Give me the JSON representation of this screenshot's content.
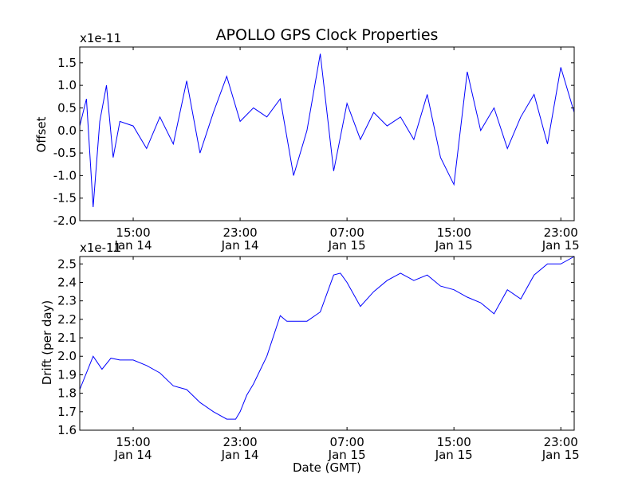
{
  "title": "APOLLO GPS Clock Properties",
  "chart_data": [
    {
      "type": "line",
      "ylabel": "Offset",
      "exponent_label": "x1e-11",
      "ylim": [
        -2.0,
        1.85
      ],
      "yticks": [
        -2.0,
        -1.5,
        -1.0,
        -0.5,
        0.0,
        0.5,
        1.0,
        1.5
      ],
      "ytick_labels": [
        "-2.0",
        "-1.5",
        "-1.0",
        "-0.5",
        "0.0",
        "0.5",
        "1.0",
        "1.5"
      ],
      "xlim": [
        "2014-01-14 11:00",
        "2014-01-16 00:00"
      ],
      "xticks": [
        "2014-01-14 15:00",
        "2014-01-14 23:00",
        "2014-01-15 07:00",
        "2014-01-15 15:00",
        "2014-01-15 23:00"
      ],
      "xtick_time": [
        "15:00",
        "23:00",
        "07:00",
        "15:00",
        "23:00"
      ],
      "xtick_date": [
        "Jan 14",
        "Jan 14",
        "Jan 15",
        "Jan 15",
        "Jan 15"
      ],
      "color": "#0000ff",
      "grid": false,
      "series": [
        {
          "x": [
            "2014-01-14 11:00",
            "2014-01-14 11:30",
            "2014-01-14 12:00",
            "2014-01-14 12:30",
            "2014-01-14 13:00",
            "2014-01-14 13:30",
            "2014-01-14 14:00",
            "2014-01-14 15:00",
            "2014-01-14 16:00",
            "2014-01-14 17:00",
            "2014-01-14 18:00",
            "2014-01-14 19:00",
            "2014-01-14 20:00",
            "2014-01-14 21:00",
            "2014-01-14 22:00",
            "2014-01-14 23:00",
            "2014-01-15 00:00",
            "2014-01-15 01:00",
            "2014-01-15 02:00",
            "2014-01-15 03:00",
            "2014-01-15 04:00",
            "2014-01-15 05:00",
            "2014-01-15 06:00",
            "2014-01-15 07:00",
            "2014-01-15 08:00",
            "2014-01-15 09:00",
            "2014-01-15 10:00",
            "2014-01-15 11:00",
            "2014-01-15 12:00",
            "2014-01-15 13:00",
            "2014-01-15 14:00",
            "2014-01-15 15:00",
            "2014-01-15 16:00",
            "2014-01-15 17:00",
            "2014-01-15 18:00",
            "2014-01-15 19:00",
            "2014-01-15 20:00",
            "2014-01-15 21:00",
            "2014-01-15 22:00",
            "2014-01-15 23:00",
            "2014-01-16 00:00"
          ],
          "y": [
            0.1,
            0.7,
            -1.7,
            0.2,
            1.0,
            -0.6,
            0.2,
            0.1,
            -0.4,
            0.3,
            -0.3,
            1.1,
            -0.5,
            0.4,
            1.2,
            0.2,
            0.5,
            0.3,
            0.7,
            -1.0,
            0.0,
            1.7,
            -0.9,
            0.6,
            -0.2,
            0.4,
            0.1,
            0.3,
            -0.2,
            0.8,
            -0.6,
            -1.2,
            1.3,
            0.0,
            0.5,
            -0.4,
            0.3,
            0.8,
            -0.3,
            1.4,
            0.4
          ]
        }
      ]
    },
    {
      "type": "line",
      "ylabel": "Drift (per day)",
      "xlabel": "Date (GMT)",
      "exponent_label": "x1e-11",
      "ylim": [
        1.6,
        2.54
      ],
      "yticks": [
        1.6,
        1.7,
        1.8,
        1.9,
        2.0,
        2.1,
        2.2,
        2.3,
        2.4,
        2.5
      ],
      "ytick_labels": [
        "1.6",
        "1.7",
        "1.8",
        "1.9",
        "2.0",
        "2.1",
        "2.2",
        "2.3",
        "2.4",
        "2.5"
      ],
      "xlim": [
        "2014-01-14 11:00",
        "2014-01-16 00:00"
      ],
      "xticks": [
        "2014-01-14 15:00",
        "2014-01-14 23:00",
        "2014-01-15 07:00",
        "2014-01-15 15:00",
        "2014-01-15 23:00"
      ],
      "xtick_time": [
        "15:00",
        "23:00",
        "07:00",
        "15:00",
        "23:00"
      ],
      "xtick_date": [
        "Jan 14",
        "Jan 14",
        "Jan 15",
        "Jan 15",
        "Jan 15"
      ],
      "color": "#0000ff",
      "grid": false,
      "series": [
        {
          "x": [
            "2014-01-14 11:00",
            "2014-01-14 12:00",
            "2014-01-14 12:40",
            "2014-01-14 13:20",
            "2014-01-14 14:00",
            "2014-01-14 15:00",
            "2014-01-14 16:00",
            "2014-01-14 17:00",
            "2014-01-14 18:00",
            "2014-01-14 19:00",
            "2014-01-14 20:00",
            "2014-01-14 21:00",
            "2014-01-14 22:00",
            "2014-01-14 22:40",
            "2014-01-14 23:00",
            "2014-01-14 23:30",
            "2014-01-15 00:00",
            "2014-01-15 01:00",
            "2014-01-15 02:00",
            "2014-01-15 02:30",
            "2014-01-15 03:00",
            "2014-01-15 04:00",
            "2014-01-15 05:00",
            "2014-01-15 06:00",
            "2014-01-15 06:30",
            "2014-01-15 07:00",
            "2014-01-15 08:00",
            "2014-01-15 09:00",
            "2014-01-15 10:00",
            "2014-01-15 11:00",
            "2014-01-15 12:00",
            "2014-01-15 13:00",
            "2014-01-15 14:00",
            "2014-01-15 15:00",
            "2014-01-15 16:00",
            "2014-01-15 17:00",
            "2014-01-15 18:00",
            "2014-01-15 19:00",
            "2014-01-15 20:00",
            "2014-01-15 21:00",
            "2014-01-15 22:00",
            "2014-01-15 23:00",
            "2014-01-16 00:00"
          ],
          "y": [
            1.82,
            2.0,
            1.93,
            1.99,
            1.98,
            1.98,
            1.95,
            1.91,
            1.84,
            1.82,
            1.75,
            1.7,
            1.66,
            1.66,
            1.7,
            1.79,
            1.85,
            2.0,
            2.22,
            2.19,
            2.19,
            2.19,
            2.24,
            2.44,
            2.45,
            2.4,
            2.27,
            2.35,
            2.41,
            2.45,
            2.41,
            2.44,
            2.38,
            2.36,
            2.32,
            2.29,
            2.23,
            2.36,
            2.31,
            2.44,
            2.5,
            2.5,
            2.54
          ]
        }
      ]
    }
  ]
}
